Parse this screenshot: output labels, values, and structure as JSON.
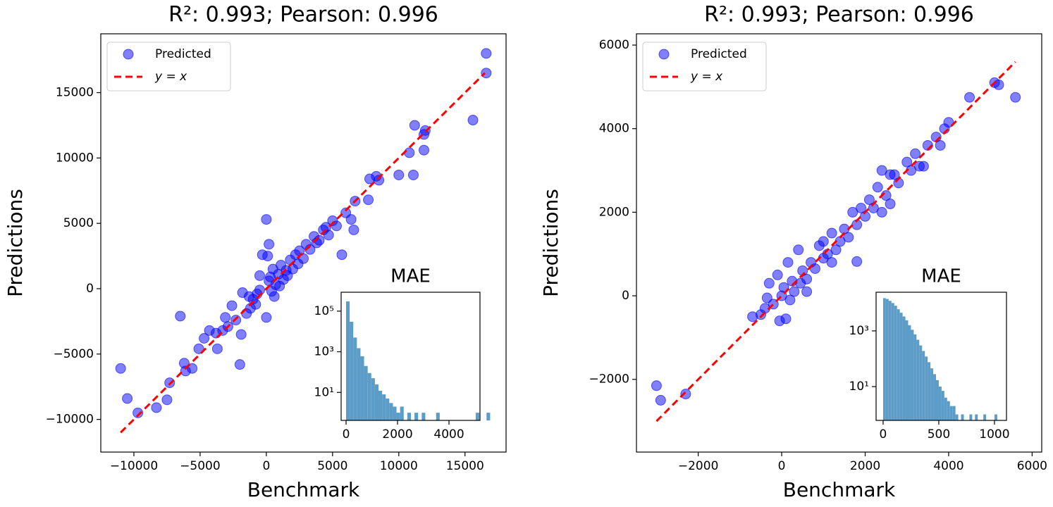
{
  "chart_data": [
    {
      "type": "scatter",
      "title": "R²: 0.993; Pearson: 0.996",
      "xlabel": "Benchmark",
      "ylabel": "Predictions",
      "xlim": [
        -12500,
        18100
      ],
      "ylim": [
        -12500,
        19500
      ],
      "xticks": [
        {
          "value": -10000,
          "label": "−10000"
        },
        {
          "value": -5000,
          "label": "−5000"
        },
        0,
        5000,
        10000,
        15000
      ],
      "yticks": [
        {
          "value": -10000,
          "label": "−10000"
        },
        {
          "value": -5000,
          "label": "−5000"
        },
        0,
        5000,
        10000,
        15000
      ],
      "legend": "upper left",
      "series": [
        {
          "name": "Predicted",
          "color": "#0000ff",
          "kind": "points",
          "x": [
            -11000,
            -10500,
            -9700,
            -8300,
            -7500,
            -7300,
            -6500,
            -6200,
            -6100,
            -5600,
            -5100,
            -4700,
            -4300,
            -3800,
            -3700,
            -3300,
            -3100,
            -2900,
            -2600,
            -2300,
            -2000,
            -1900,
            -1800,
            -1500,
            -1200,
            -1000,
            -700,
            -500,
            -300,
            0,
            100,
            200,
            400,
            500,
            700,
            900,
            1100,
            1300,
            1500,
            1800,
            2000,
            2200,
            2500,
            2800,
            3000,
            3300,
            3600,
            4000,
            4300,
            4700,
            5000,
            5300,
            5700,
            6000,
            6400,
            6700,
            6600,
            7700,
            7800,
            8300,
            8500,
            10000,
            10800,
            11100,
            11200,
            11900,
            12000,
            11900,
            15600,
            16600,
            16600,
            -800,
            300,
            600,
            1000,
            1600,
            2400,
            3800,
            4500,
            -1300,
            0,
            -500,
            200
          ],
          "values": [
            -6100,
            -8400,
            -9500,
            -9100,
            -8500,
            -7200,
            -2100,
            -5700,
            -6300,
            -6100,
            -4600,
            -3800,
            -3200,
            -3400,
            -4600,
            -3200,
            -2200,
            -2900,
            -1300,
            -2400,
            -5800,
            -3500,
            -300,
            -1900,
            -1500,
            -800,
            -400,
            -100,
            2600,
            5300,
            2500,
            600,
            -200,
            1500,
            300,
            1100,
            1800,
            700,
            1400,
            2200,
            1500,
            2600,
            2900,
            2300,
            3400,
            3000,
            4000,
            3700,
            4500,
            4100,
            5200,
            4800,
            2600,
            5800,
            5300,
            6700,
            4500,
            6800,
            8400,
            8600,
            8300,
            8700,
            10400,
            8700,
            12500,
            11800,
            12100,
            10600,
            12900,
            16500,
            18000,
            -1200,
            900,
            -600,
            200,
            1000,
            1900,
            3500,
            4700,
            -600,
            -2200,
            1000,
            3400
          ]
        },
        {
          "name": "y = x",
          "color": "#ff0000",
          "kind": "line",
          "x": [
            -11000,
            16500
          ],
          "values": [
            -11000,
            16500
          ]
        }
      ]
    },
    {
      "type": "histogram",
      "title": "MAE",
      "ylog": true,
      "color": "#5b9cc8",
      "xlim": [
        -192,
        5205
      ],
      "ylim": [
        0.42,
        850000
      ],
      "xticks": [
        0,
        2000,
        4000
      ],
      "yticks": [
        {
          "value": 10,
          "label": "10¹"
        },
        {
          "value": 1000,
          "label": "10³"
        },
        {
          "value": 100000,
          "label": "10⁵"
        }
      ],
      "bins": [
        0,
        140,
        280,
        420,
        560,
        700,
        840,
        980,
        1120,
        1260,
        1400,
        1540,
        1680,
        1820,
        1960,
        2100,
        2240,
        2380,
        2520,
        2660,
        2800,
        2940,
        3080,
        3220,
        3360,
        3500,
        3640,
        3780,
        3920,
        4060,
        4200,
        4340,
        4480,
        4620,
        4760,
        4900,
        5040,
        5180,
        5320,
        5460,
        5600
      ],
      "values": [
        300000,
        30000,
        5000,
        1500,
        600,
        200,
        90,
        50,
        25,
        12,
        8,
        5,
        3,
        2,
        1,
        2,
        0,
        1,
        0,
        1,
        0,
        1,
        0,
        0,
        0,
        1,
        0,
        0,
        0,
        0,
        0,
        0,
        0,
        0,
        0,
        0,
        1,
        0,
        0,
        1
      ]
    },
    {
      "type": "scatter",
      "title": "R²: 0.993; Pearson: 0.996",
      "xlabel": "Benchmark",
      "ylabel": "Predictions",
      "xlim": [
        -3480,
        6230
      ],
      "ylim": [
        -3740,
        6270
      ],
      "xticks": [
        {
          "value": -2000,
          "label": "−2000"
        },
        0,
        2000,
        4000,
        6000
      ],
      "yticks": [
        {
          "value": -2000,
          "label": "−2000"
        },
        0,
        2000,
        4000,
        6000
      ],
      "legend": "upper left",
      "series": [
        {
          "name": "Predicted",
          "color": "#0000ff",
          "kind": "points",
          "x": [
            -3000,
            -2900,
            -2300,
            -700,
            -500,
            -400,
            -350,
            -300,
            -200,
            -100,
            -50,
            0,
            50,
            100,
            150,
            200,
            250,
            300,
            400,
            450,
            500,
            600,
            700,
            800,
            900,
            1000,
            1100,
            1200,
            1300,
            1400,
            1500,
            1600,
            1700,
            1800,
            1900,
            2000,
            2100,
            2200,
            2300,
            2400,
            2500,
            2600,
            2700,
            2800,
            3000,
            3100,
            3200,
            3300,
            3400,
            3500,
            3700,
            3800,
            3900,
            4000,
            4500,
            5100,
            5200,
            5600,
            1800,
            1200,
            2400,
            2600,
            1000,
            600
          ],
          "values": [
            -2150,
            -2500,
            -2350,
            -500,
            -450,
            -300,
            -50,
            300,
            -200,
            500,
            -600,
            0,
            200,
            -550,
            800,
            -100,
            350,
            100,
            1100,
            300,
            600,
            400,
            800,
            650,
            1200,
            900,
            1000,
            1500,
            1100,
            1300,
            1600,
            1400,
            2000,
            1700,
            2100,
            1900,
            2300,
            2100,
            2600,
            3000,
            2400,
            2200,
            2900,
            2700,
            3200,
            3000,
            3400,
            3100,
            3100,
            3600,
            3800,
            3600,
            4000,
            4150,
            4750,
            5100,
            5050,
            4750,
            820,
            800,
            2000,
            2900,
            1300,
            100
          ]
        },
        {
          "name": "y = x",
          "color": "#ff0000",
          "kind": "line",
          "x": [
            -3000,
            5600
          ],
          "values": [
            -3000,
            5600
          ]
        }
      ]
    },
    {
      "type": "histogram",
      "title": "MAE",
      "ylog": true,
      "color": "#5b9cc8",
      "xlim": [
        -63,
        1108
      ],
      "ylim": [
        0.61,
        24500
      ],
      "xticks": [
        0,
        500,
        1000
      ],
      "yticks": [
        {
          "value": 10,
          "label": "10¹"
        },
        {
          "value": 1000,
          "label": "10³"
        }
      ],
      "bins": [
        0,
        25,
        50,
        75,
        100,
        125,
        150,
        175,
        200,
        225,
        250,
        275,
        300,
        325,
        350,
        375,
        400,
        425,
        450,
        475,
        500,
        525,
        550,
        575,
        600,
        625,
        650,
        675,
        700,
        725,
        750,
        775,
        800,
        825,
        850,
        875,
        900,
        925,
        950,
        975,
        1000,
        1025,
        1050
      ],
      "values": [
        15000,
        14000,
        12000,
        10000,
        8000,
        6000,
        4500,
        3300,
        2400,
        1600,
        1100,
        750,
        480,
        300,
        190,
        120,
        75,
        45,
        28,
        17,
        10,
        7,
        4,
        3,
        2,
        2,
        1,
        0,
        1,
        0,
        0,
        1,
        0,
        1,
        0,
        0,
        1,
        0,
        0,
        0,
        1,
        0
      ]
    }
  ]
}
